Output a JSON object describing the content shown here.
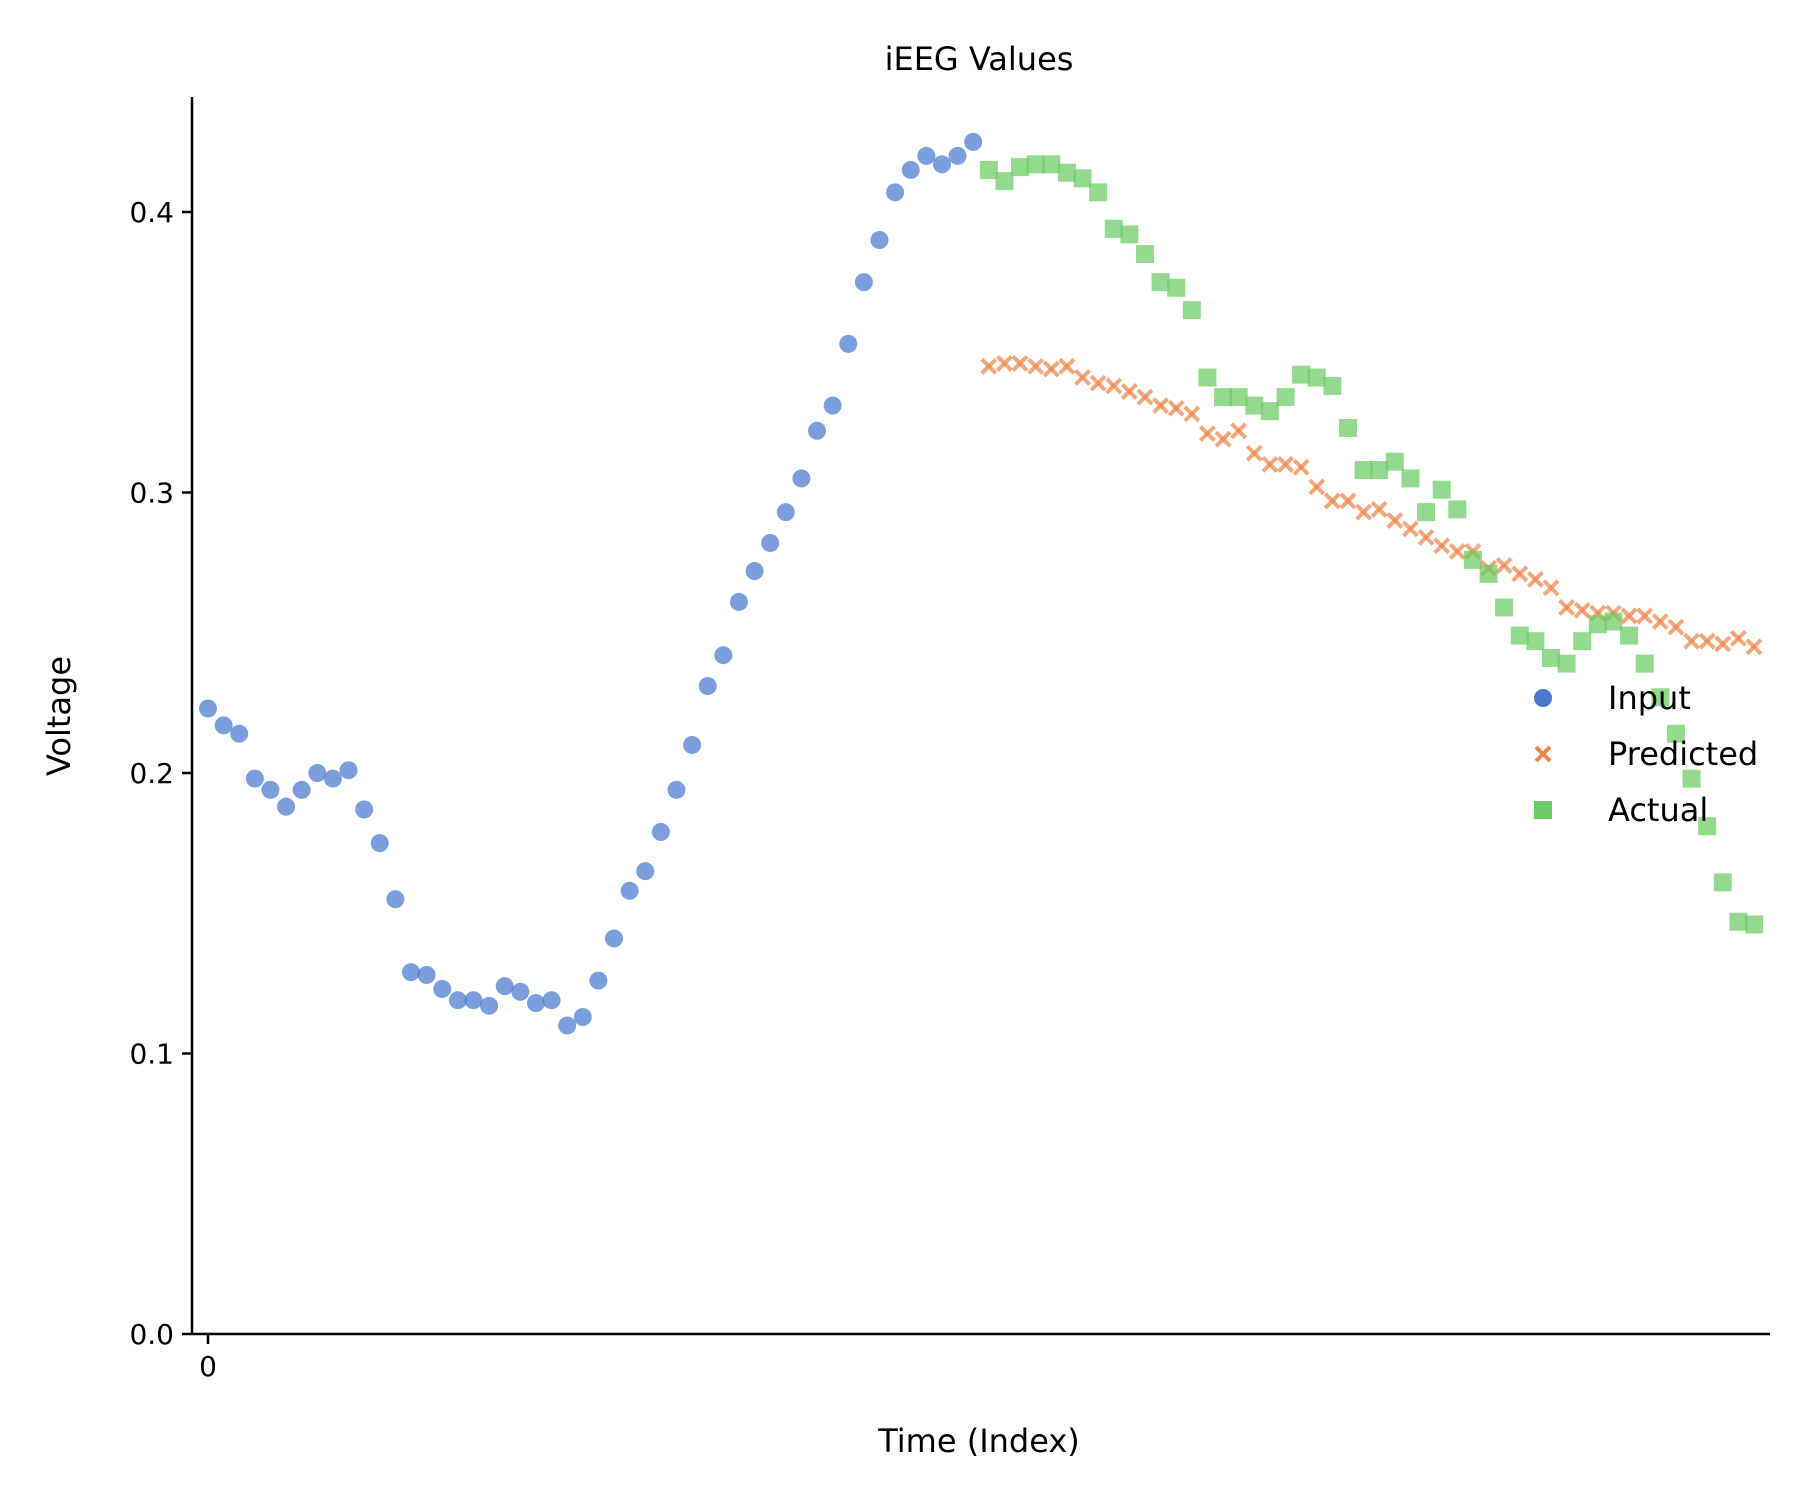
{
  "chart_data": {
    "type": "scatter",
    "title": "iEEG Values",
    "xlabel": "Time (Index)",
    "ylabel": "Voltage",
    "xlim": [
      -1,
      100
    ],
    "ylim": [
      0,
      0.44
    ],
    "x_ticks": [
      0
    ],
    "y_ticks": [
      0.0,
      0.1,
      0.2,
      0.3,
      0.4
    ],
    "y_tick_labels": [
      "0.0",
      "0.1",
      "0.2",
      "0.3",
      "0.4"
    ],
    "legend_position": "right",
    "grid": false,
    "series": [
      {
        "name": "Input",
        "marker": "circle",
        "color": "#4878d0",
        "x": [
          0,
          1,
          2,
          3,
          4,
          5,
          6,
          7,
          8,
          9,
          10,
          11,
          12,
          13,
          14,
          15,
          16,
          17,
          18,
          19,
          20,
          21,
          22,
          23,
          24,
          25,
          26,
          27,
          28,
          29,
          30,
          31,
          32,
          33,
          34,
          35,
          36,
          37,
          38,
          39,
          40,
          41,
          42,
          43,
          44,
          45,
          46,
          47,
          48,
          49
        ],
        "y": [
          0.223,
          0.217,
          0.214,
          0.198,
          0.194,
          0.188,
          0.194,
          0.2,
          0.198,
          0.201,
          0.187,
          0.175,
          0.155,
          0.129,
          0.128,
          0.123,
          0.119,
          0.119,
          0.117,
          0.124,
          0.122,
          0.118,
          0.119,
          0.11,
          0.113,
          0.126,
          0.141,
          0.158,
          0.165,
          0.179,
          0.194,
          0.21,
          0.231,
          0.242,
          0.261,
          0.272,
          0.282,
          0.293,
          0.305,
          0.322,
          0.331,
          0.353,
          0.375,
          0.39,
          0.407,
          0.415,
          0.42,
          0.417,
          0.42,
          0.425
        ]
      },
      {
        "name": "Predicted",
        "marker": "x",
        "color": "#ee854a",
        "x": [
          50,
          51,
          52,
          53,
          54,
          55,
          56,
          57,
          58,
          59,
          60,
          61,
          62,
          63,
          64,
          65,
          66,
          67,
          68,
          69,
          70,
          71,
          72,
          73,
          74,
          75,
          76,
          77,
          78,
          79,
          80,
          81,
          82,
          83,
          84,
          85,
          86,
          87,
          88,
          89,
          90,
          91,
          92,
          93,
          94,
          95,
          96,
          97,
          98,
          99
        ],
        "y": [
          0.345,
          0.346,
          0.346,
          0.345,
          0.344,
          0.345,
          0.341,
          0.339,
          0.338,
          0.336,
          0.334,
          0.331,
          0.33,
          0.328,
          0.321,
          0.319,
          0.322,
          0.314,
          0.31,
          0.31,
          0.309,
          0.302,
          0.297,
          0.297,
          0.293,
          0.294,
          0.29,
          0.287,
          0.284,
          0.281,
          0.279,
          0.279,
          0.273,
          0.274,
          0.271,
          0.269,
          0.266,
          0.259,
          0.258,
          0.257,
          0.257,
          0.256,
          0.256,
          0.254,
          0.252,
          0.247,
          0.247,
          0.246,
          0.248,
          0.245
        ]
      },
      {
        "name": "Actual",
        "marker": "square",
        "color": "#6acc64",
        "x": [
          50,
          51,
          52,
          53,
          54,
          55,
          56,
          57,
          58,
          59,
          60,
          61,
          62,
          63,
          64,
          65,
          66,
          67,
          68,
          69,
          70,
          71,
          72,
          73,
          74,
          75,
          76,
          77,
          78,
          79,
          80,
          81,
          82,
          83,
          84,
          85,
          86,
          87,
          88,
          89,
          90,
          91,
          92,
          93,
          94,
          95,
          96,
          97,
          98,
          99
        ],
        "y": [
          0.415,
          0.411,
          0.416,
          0.417,
          0.417,
          0.414,
          0.412,
          0.407,
          0.394,
          0.392,
          0.385,
          0.375,
          0.373,
          0.365,
          0.341,
          0.334,
          0.334,
          0.331,
          0.329,
          0.334,
          0.342,
          0.341,
          0.338,
          0.323,
          0.308,
          0.308,
          0.311,
          0.305,
          0.293,
          0.301,
          0.294,
          0.276,
          0.271,
          0.259,
          0.249,
          0.247,
          0.241,
          0.239,
          0.247,
          0.253,
          0.254,
          0.249,
          0.239,
          0.227,
          0.214,
          0.198,
          0.181,
          0.161,
          0.147,
          0.146
        ]
      }
    ]
  }
}
